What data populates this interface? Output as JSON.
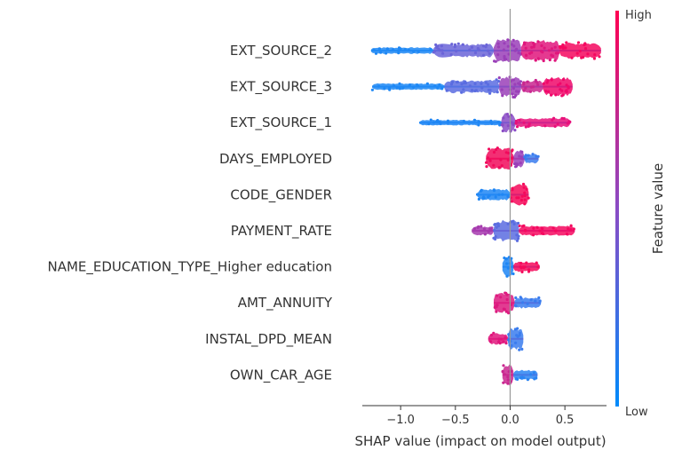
{
  "chart_data": {
    "type": "scatter",
    "subtype": "shap-beeswarm",
    "xlabel": "SHAP value (impact on model output)",
    "xlim": [
      -1.35,
      0.88
    ],
    "xticks": [
      -1.0,
      -0.5,
      0.0,
      0.5
    ],
    "xtick_labels": [
      "−1.0",
      "−0.5",
      "0.0",
      "0.5"
    ],
    "zero_line": 0.0,
    "grid": false,
    "legend": "colorbar-right",
    "colorbar": {
      "label": "Feature value",
      "high_label": "High",
      "low_label": "Low",
      "high_color": "#ff0052",
      "low_color": "#008bfb"
    },
    "features": [
      {
        "name": "EXT_SOURCE_2",
        "range": [
          -1.27,
          0.83
        ],
        "bands": [
          {
            "x0": -1.27,
            "x1": -0.7,
            "w": 0.3,
            "color": "#1e88f5"
          },
          {
            "x0": -0.7,
            "x1": -0.15,
            "w": 0.6,
            "color": "#6a64d8"
          },
          {
            "x0": -0.15,
            "x1": 0.1,
            "w": 1.0,
            "color": "#9a3fb8"
          },
          {
            "x0": 0.1,
            "x1": 0.45,
            "w": 0.95,
            "color": "#e0167c"
          },
          {
            "x0": 0.45,
            "x1": 0.83,
            "w": 0.7,
            "color": "#f5085f"
          }
        ]
      },
      {
        "name": "EXT_SOURCE_3",
        "range": [
          -1.26,
          0.57
        ],
        "bands": [
          {
            "x0": -1.26,
            "x1": -0.6,
            "w": 0.3,
            "color": "#1e88f5"
          },
          {
            "x0": -0.6,
            "x1": -0.1,
            "w": 0.6,
            "color": "#5a6ce0"
          },
          {
            "x0": -0.1,
            "x1": 0.1,
            "w": 0.95,
            "color": "#9a3fb8"
          },
          {
            "x0": 0.1,
            "x1": 0.3,
            "w": 0.55,
            "color": "#c9268f"
          },
          {
            "x0": 0.3,
            "x1": 0.57,
            "w": 0.85,
            "color": "#f0086a"
          }
        ]
      },
      {
        "name": "EXT_SOURCE_1",
        "range": [
          -0.83,
          0.55
        ],
        "bands": [
          {
            "x0": -0.83,
            "x1": -0.08,
            "w": 0.25,
            "color": "#1f86f4"
          },
          {
            "x0": -0.08,
            "x1": 0.05,
            "w": 0.85,
            "color": "#8a4cc5"
          },
          {
            "x0": 0.05,
            "x1": 0.55,
            "w": 0.4,
            "color": "#e8107a"
          }
        ]
      },
      {
        "name": "DAYS_EMPLOYED",
        "range": [
          -0.22,
          0.26
        ],
        "bands": [
          {
            "x0": -0.22,
            "x1": 0.03,
            "w": 0.95,
            "color": "#f10a5c"
          },
          {
            "x0": 0.03,
            "x1": 0.13,
            "w": 0.8,
            "color": "#9a3fb8"
          },
          {
            "x0": 0.13,
            "x1": 0.26,
            "w": 0.45,
            "color": "#3a7cee"
          }
        ]
      },
      {
        "name": "CODE_GENDER",
        "range": [
          -0.3,
          0.17
        ],
        "bands": [
          {
            "x0": -0.3,
            "x1": 0.0,
            "w": 0.5,
            "color": "#1f86f4"
          },
          {
            "x0": 0.0,
            "x1": 0.17,
            "w": 0.95,
            "color": "#f5095b"
          }
        ]
      },
      {
        "name": "PAYMENT_RATE",
        "range": [
          -0.35,
          0.59
        ],
        "bands": [
          {
            "x0": -0.35,
            "x1": -0.15,
            "w": 0.4,
            "color": "#a63aae"
          },
          {
            "x0": -0.15,
            "x1": 0.08,
            "w": 0.95,
            "color": "#5a6ce0"
          },
          {
            "x0": 0.08,
            "x1": 0.59,
            "w": 0.45,
            "color": "#f5085f"
          }
        ]
      },
      {
        "name": "NAME_EDUCATION_TYPE_Higher education",
        "range": [
          -0.07,
          0.27
        ],
        "bands": [
          {
            "x0": -0.07,
            "x1": 0.03,
            "w": 1.0,
            "color": "#1f86f4"
          },
          {
            "x0": 0.03,
            "x1": 0.27,
            "w": 0.45,
            "color": "#f5095b"
          }
        ]
      },
      {
        "name": "AMT_ANNUITY",
        "range": [
          -0.15,
          0.28
        ],
        "bands": [
          {
            "x0": -0.15,
            "x1": 0.04,
            "w": 0.9,
            "color": "#dd1a7f"
          },
          {
            "x0": 0.04,
            "x1": 0.28,
            "w": 0.5,
            "color": "#3a7cee"
          }
        ]
      },
      {
        "name": "INSTAL_DPD_MEAN",
        "range": [
          -0.2,
          0.12
        ],
        "bands": [
          {
            "x0": -0.2,
            "x1": -0.02,
            "w": 0.5,
            "color": "#e0167c"
          },
          {
            "x0": -0.02,
            "x1": 0.12,
            "w": 1.0,
            "color": "#3a7cee"
          }
        ]
      },
      {
        "name": "OWN_CAR_AGE",
        "range": [
          -0.07,
          0.25
        ],
        "bands": [
          {
            "x0": -0.07,
            "x1": 0.03,
            "w": 1.0,
            "color": "#c9268f"
          },
          {
            "x0": 0.03,
            "x1": 0.25,
            "w": 0.45,
            "color": "#2a84f2"
          }
        ]
      }
    ]
  }
}
